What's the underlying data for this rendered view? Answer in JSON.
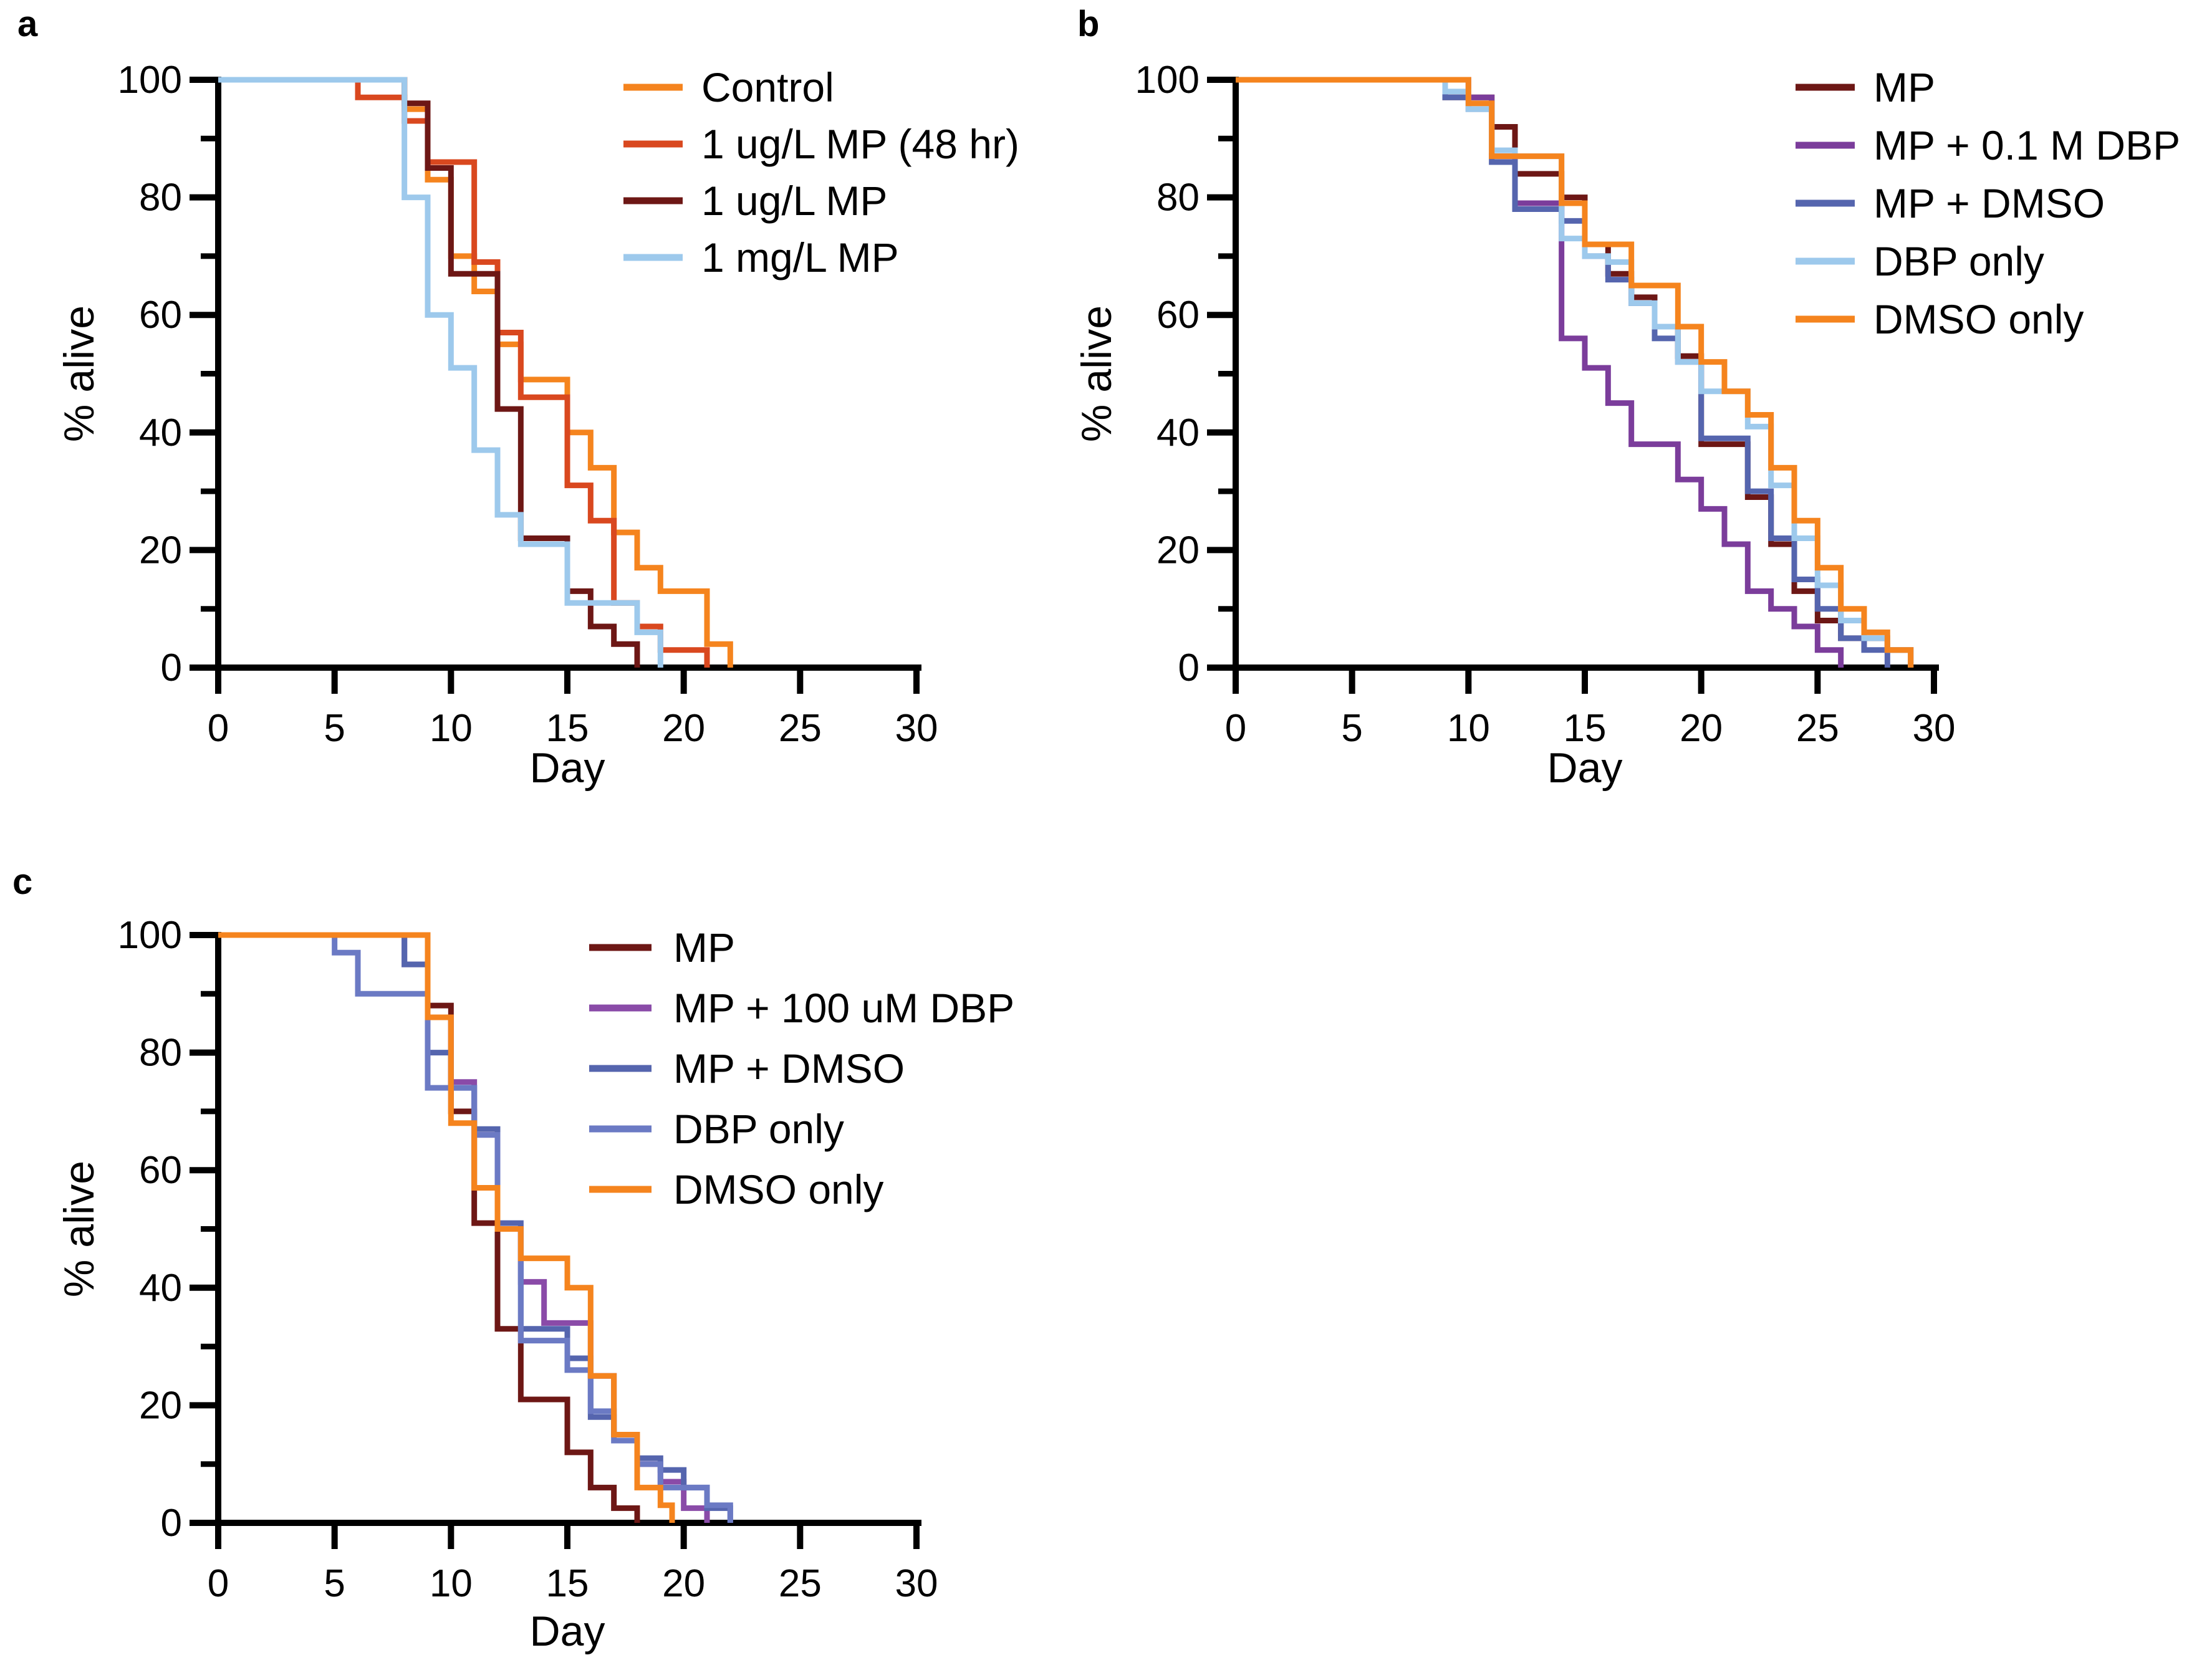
{
  "figure": {
    "background": "#ffffff",
    "axis_color": "#000000"
  },
  "chart_data": [
    {
      "type": "line",
      "subtype": "step-survival",
      "panel_label": "a",
      "xlabel": "Day",
      "ylabel": "% alive",
      "xlim": [
        0,
        30
      ],
      "ylim": [
        0,
        100
      ],
      "xticks": [
        0,
        5,
        10,
        15,
        20,
        25,
        30
      ],
      "yticks_major": [
        0,
        20,
        40,
        60,
        80,
        100
      ],
      "yticks_minor": [
        10,
        30,
        50,
        70,
        90
      ],
      "grid": false,
      "legend_position": "top-right-inside",
      "series": [
        {
          "name": "Control",
          "color": "#F5841E",
          "points": [
            [
              0,
              100
            ],
            [
              8,
              95
            ],
            [
              9,
              83
            ],
            [
              10,
              70
            ],
            [
              11,
              64
            ],
            [
              12,
              55
            ],
            [
              13,
              49
            ],
            [
              15,
              40
            ],
            [
              16,
              34
            ],
            [
              17,
              23
            ],
            [
              18,
              17
            ],
            [
              19,
              13
            ],
            [
              21,
              4
            ],
            [
              22,
              0
            ]
          ]
        },
        {
          "name": "1 ug/L MP (48 hr)",
          "color": "#D9481F",
          "points": [
            [
              0,
              100
            ],
            [
              6,
              97
            ],
            [
              8,
              93
            ],
            [
              9,
              86
            ],
            [
              11,
              69
            ],
            [
              12,
              57
            ],
            [
              13,
              46
            ],
            [
              15,
              31
            ],
            [
              16,
              25
            ],
            [
              17,
              11
            ],
            [
              18,
              7
            ],
            [
              19,
              3
            ],
            [
              21,
              0
            ]
          ]
        },
        {
          "name": "1 ug/L MP",
          "color": "#6D1715",
          "points": [
            [
              0,
              100
            ],
            [
              8,
              96
            ],
            [
              9,
              85
            ],
            [
              10,
              67
            ],
            [
              12,
              44
            ],
            [
              13,
              22
            ],
            [
              15,
              13
            ],
            [
              16,
              7
            ],
            [
              17,
              4
            ],
            [
              18,
              0
            ]
          ]
        },
        {
          "name": "1 mg/L MP",
          "color": "#9DC9EC",
          "points": [
            [
              0,
              100
            ],
            [
              8,
              80
            ],
            [
              9,
              60
            ],
            [
              10,
              51
            ],
            [
              11,
              37
            ],
            [
              12,
              26
            ],
            [
              13,
              21
            ],
            [
              15,
              11
            ],
            [
              18,
              6
            ],
            [
              19,
              0
            ]
          ]
        }
      ]
    },
    {
      "type": "line",
      "subtype": "step-survival",
      "panel_label": "b",
      "xlabel": "Day",
      "ylabel": "% alive",
      "xlim": [
        0,
        30
      ],
      "ylim": [
        0,
        100
      ],
      "xticks": [
        0,
        5,
        10,
        15,
        20,
        25,
        30
      ],
      "yticks_major": [
        0,
        20,
        40,
        60,
        80,
        100
      ],
      "yticks_minor": [
        10,
        30,
        50,
        70,
        90
      ],
      "grid": false,
      "legend_position": "top-right-inside",
      "series": [
        {
          "name": "MP",
          "color": "#6D1715",
          "points": [
            [
              0,
              100
            ],
            [
              9,
              97
            ],
            [
              11,
              92
            ],
            [
              12,
              84
            ],
            [
              14,
              80
            ],
            [
              15,
              72
            ],
            [
              16,
              67
            ],
            [
              17,
              63
            ],
            [
              18,
              58
            ],
            [
              19,
              53
            ],
            [
              20,
              38
            ],
            [
              22,
              29
            ],
            [
              23,
              21
            ],
            [
              24,
              13
            ],
            [
              25,
              8
            ],
            [
              26,
              5
            ],
            [
              28,
              3
            ],
            [
              29,
              0
            ]
          ]
        },
        {
          "name": "MP + 0.1 M DBP",
          "color": "#7B3D9B",
          "points": [
            [
              0,
              100
            ],
            [
              10,
              97
            ],
            [
              11,
              87
            ],
            [
              12,
              79
            ],
            [
              14,
              56
            ],
            [
              15,
              51
            ],
            [
              16,
              45
            ],
            [
              17,
              38
            ],
            [
              19,
              32
            ],
            [
              20,
              27
            ],
            [
              21,
              21
            ],
            [
              22,
              13
            ],
            [
              23,
              10
            ],
            [
              24,
              7
            ],
            [
              25,
              3
            ],
            [
              26,
              0
            ]
          ]
        },
        {
          "name": "MP + DMSO",
          "color": "#5565AE",
          "points": [
            [
              0,
              100
            ],
            [
              9,
              97
            ],
            [
              10,
              95
            ],
            [
              11,
              86
            ],
            [
              12,
              78
            ],
            [
              14,
              76
            ],
            [
              15,
              70
            ],
            [
              16,
              66
            ],
            [
              17,
              62
            ],
            [
              18,
              56
            ],
            [
              19,
              52
            ],
            [
              20,
              39
            ],
            [
              22,
              30
            ],
            [
              23,
              22
            ],
            [
              24,
              15
            ],
            [
              25,
              10
            ],
            [
              26,
              5
            ],
            [
              27,
              3
            ],
            [
              28,
              0
            ]
          ]
        },
        {
          "name": "DBP only",
          "color": "#9DC9EC",
          "points": [
            [
              0,
              100
            ],
            [
              9,
              98
            ],
            [
              10,
              95
            ],
            [
              11,
              88
            ],
            [
              12,
              87
            ],
            [
              14,
              73
            ],
            [
              15,
              70
            ],
            [
              16,
              69
            ],
            [
              17,
              62
            ],
            [
              18,
              58
            ],
            [
              19,
              52
            ],
            [
              20,
              47
            ],
            [
              22,
              41
            ],
            [
              23,
              31
            ],
            [
              24,
              22
            ],
            [
              25,
              14
            ],
            [
              26,
              8
            ],
            [
              27,
              5
            ],
            [
              28,
              3
            ],
            [
              29,
              0
            ]
          ]
        },
        {
          "name": "DMSO only",
          "color": "#F5841E",
          "points": [
            [
              0,
              100
            ],
            [
              10,
              96
            ],
            [
              11,
              87
            ],
            [
              14,
              79
            ],
            [
              15,
              72
            ],
            [
              17,
              65
            ],
            [
              19,
              58
            ],
            [
              20,
              52
            ],
            [
              21,
              47
            ],
            [
              22,
              43
            ],
            [
              23,
              34
            ],
            [
              24,
              25
            ],
            [
              25,
              17
            ],
            [
              26,
              10
            ],
            [
              27,
              6
            ],
            [
              28,
              3
            ],
            [
              29,
              0
            ]
          ]
        }
      ]
    },
    {
      "type": "line",
      "subtype": "step-survival",
      "panel_label": "c",
      "xlabel": "Day",
      "ylabel": "% alive",
      "xlim": [
        0,
        30
      ],
      "ylim": [
        0,
        100
      ],
      "xticks": [
        0,
        5,
        10,
        15,
        20,
        25,
        30
      ],
      "yticks_major": [
        0,
        20,
        40,
        60,
        80,
        100
      ],
      "yticks_minor": [
        10,
        30,
        50,
        70,
        90
      ],
      "grid": false,
      "legend_position": "top-right-inside",
      "series": [
        {
          "name": "MP",
          "color": "#6D1715",
          "points": [
            [
              0,
              100
            ],
            [
              9,
              88
            ],
            [
              10,
              70
            ],
            [
              11,
              51
            ],
            [
              12,
              33
            ],
            [
              13,
              21
            ],
            [
              15,
              12
            ],
            [
              16,
              6
            ],
            [
              17,
              2.5
            ],
            [
              18,
              0
            ]
          ]
        },
        {
          "name": "MP + 100 uM DBP",
          "color": "#8A4BA8",
          "points": [
            [
              0,
              100
            ],
            [
              8,
              95
            ],
            [
              9,
              86
            ],
            [
              10,
              75
            ],
            [
              11,
              66
            ],
            [
              12,
              50
            ],
            [
              13,
              41
            ],
            [
              14,
              34
            ],
            [
              16,
              25
            ],
            [
              17,
              15
            ],
            [
              18,
              10
            ],
            [
              19,
              7
            ],
            [
              20,
              2.5
            ],
            [
              21,
              0
            ]
          ]
        },
        {
          "name": "MP + DMSO",
          "color": "#5565AE",
          "points": [
            [
              0,
              100
            ],
            [
              8,
              95
            ],
            [
              9,
              80
            ],
            [
              10,
              74
            ],
            [
              11,
              67
            ],
            [
              12,
              51
            ],
            [
              13,
              33
            ],
            [
              15,
              28
            ],
            [
              16,
              18
            ],
            [
              17,
              15
            ],
            [
              18,
              11
            ],
            [
              19,
              9
            ],
            [
              20,
              6
            ],
            [
              21,
              2.5
            ],
            [
              22,
              0
            ]
          ]
        },
        {
          "name": "DBP only",
          "color": "#6B7AC4",
          "points": [
            [
              0,
              100
            ],
            [
              5,
              97
            ],
            [
              6,
              90
            ],
            [
              9,
              74
            ],
            [
              11,
              66
            ],
            [
              12,
              50
            ],
            [
              13,
              31
            ],
            [
              15,
              26
            ],
            [
              16,
              19
            ],
            [
              17,
              14
            ],
            [
              18,
              10
            ],
            [
              19,
              6
            ],
            [
              21,
              3
            ],
            [
              22,
              0
            ]
          ]
        },
        {
          "name": "DMSO only",
          "color": "#F5841E",
          "points": [
            [
              0,
              100
            ],
            [
              9,
              86
            ],
            [
              10,
              68
            ],
            [
              11,
              57
            ],
            [
              12,
              50
            ],
            [
              13,
              45
            ],
            [
              15,
              40
            ],
            [
              16,
              25
            ],
            [
              17,
              15
            ],
            [
              18,
              6
            ],
            [
              19,
              3
            ],
            [
              19.5,
              0
            ]
          ]
        }
      ]
    }
  ]
}
